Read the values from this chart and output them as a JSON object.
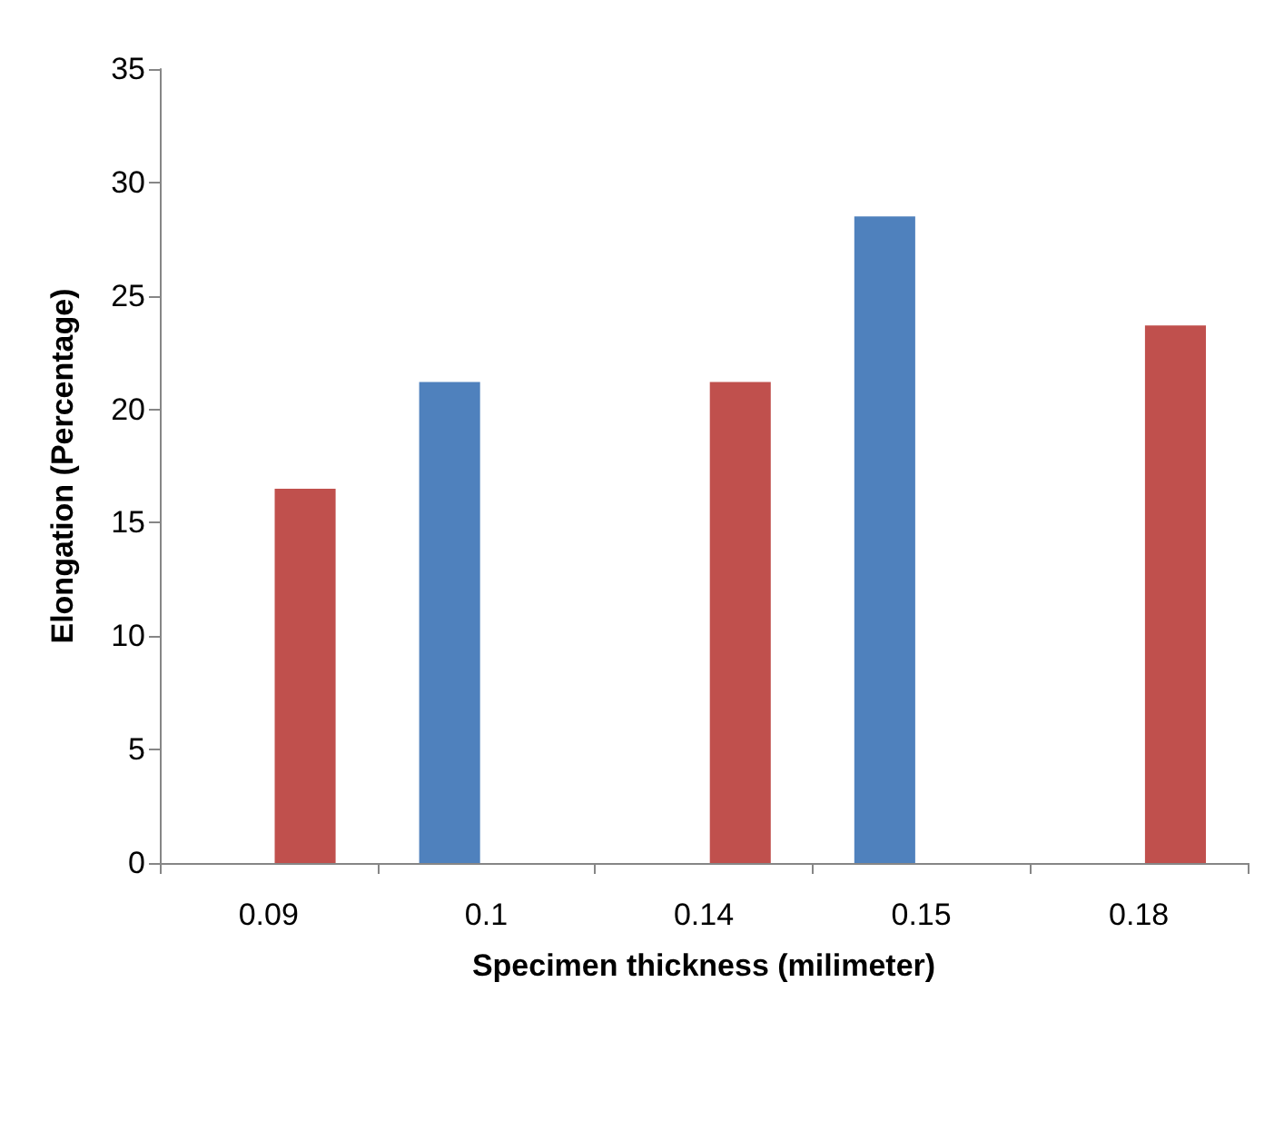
{
  "chart_data": {
    "type": "bar",
    "xlabel": "Specimen thickness (milimeter)",
    "ylabel": "Elongation (Percentage)",
    "categories": [
      "0.09",
      "0.1",
      "0.14",
      "0.15",
      "0.18"
    ],
    "series": [
      {
        "color": "#4f81bd",
        "values": [
          null,
          21.2,
          null,
          28.5,
          null
        ]
      },
      {
        "color": "#c0504d",
        "values": [
          16.5,
          null,
          21.2,
          null,
          23.7
        ]
      }
    ],
    "ylim": [
      0,
      35
    ],
    "yticks": [
      0,
      5,
      10,
      15,
      20,
      25,
      30,
      35
    ],
    "grid": false
  }
}
